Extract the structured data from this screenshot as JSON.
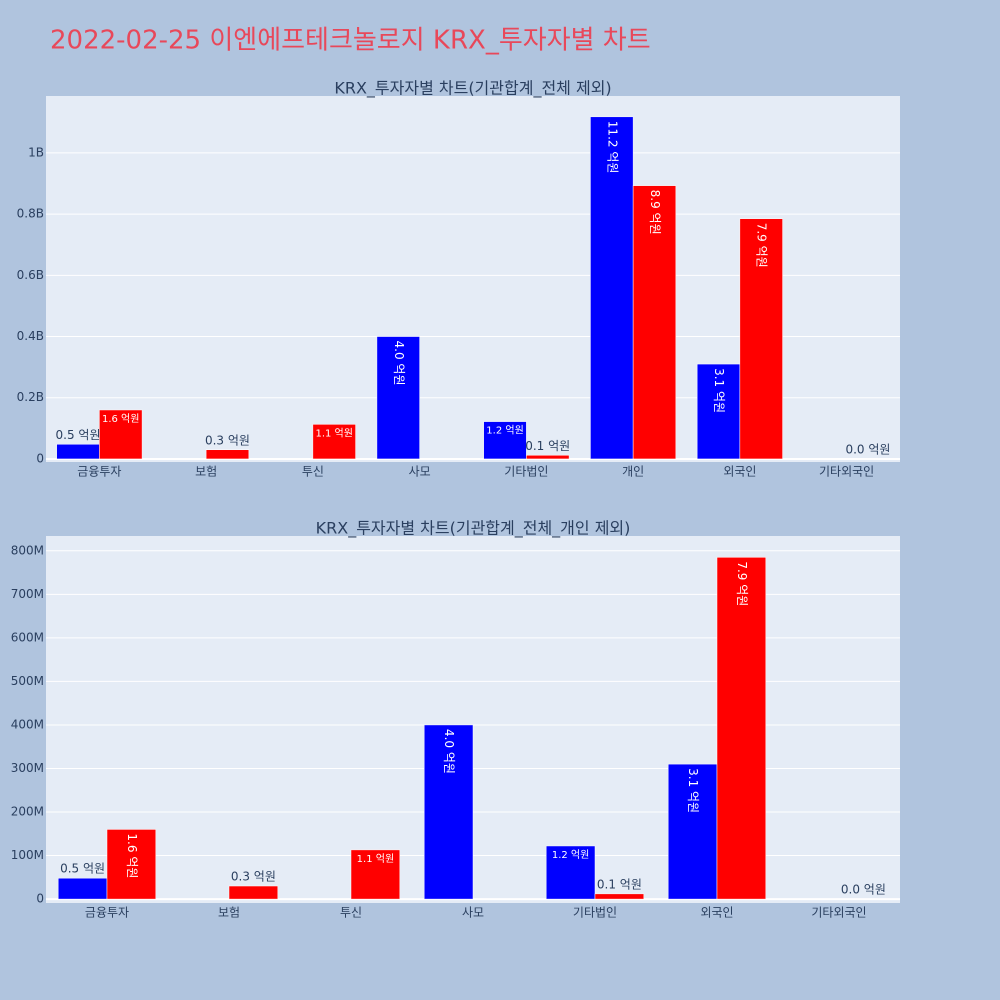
{
  "title": "2022-02-25 이엔에프테크놀로지 KRX_투자자별 차트",
  "chart_data": [
    {
      "type": "bar",
      "title": "KRX_투자자별 차트(기관합계_전체 제외)",
      "categories": [
        "금융투자",
        "보험",
        "투신",
        "사모",
        "기타법인",
        "개인",
        "외국인",
        "기타외국인"
      ],
      "series": [
        {
          "color": "#0000ff",
          "values": [
            48000000,
            null,
            null,
            400000000,
            122000000,
            1118000000,
            310000000,
            null
          ],
          "value_labels": [
            "0.5 억원",
            null,
            null,
            "4.0 억원",
            "1.2 억원",
            "11.2 억원",
            "3.1 억원",
            null
          ]
        },
        {
          "color": "#ff0000",
          "values": [
            160000000,
            30000000,
            113000000,
            null,
            12000000,
            893000000,
            785000000,
            0
          ],
          "value_labels": [
            "1.6 억원",
            "0.3 억원",
            "1.1 억원",
            null,
            "0.1 억원",
            "8.9 억원",
            "7.9 억원",
            "0.0 억원"
          ]
        }
      ],
      "ylim": [
        -10000000,
        1186000000
      ],
      "yticks": [
        0,
        {
          "value": 200000000,
          "label": "0.2B"
        },
        {
          "value": 400000000,
          "label": "0.4B"
        },
        {
          "value": 600000000,
          "label": "0.6B"
        },
        {
          "value": 800000000,
          "label": "0.8B"
        },
        {
          "value": 1000000000,
          "label": "1B"
        }
      ],
      "grid": true
    },
    {
      "type": "bar",
      "title": "KRX_투자자별 차트(기관합계_전체_개인 제외)",
      "categories": [
        "금융투자",
        "보험",
        "투신",
        "사모",
        "기타법인",
        "외국인",
        "기타외국인"
      ],
      "series": [
        {
          "color": "#0000ff",
          "values": [
            48000000,
            null,
            null,
            400000000,
            122000000,
            310000000,
            null
          ],
          "value_labels": [
            "0.5 억원",
            null,
            null,
            "4.0 억원",
            "1.2 억원",
            "3.1 억원",
            null
          ]
        },
        {
          "color": "#ff0000",
          "values": [
            160000000,
            30000000,
            113000000,
            null,
            12000000,
            785000000,
            0
          ],
          "value_labels": [
            "1.6 억원",
            "0.3 억원",
            "1.1 억원",
            null,
            "0.1 억원",
            "7.9 억원",
            "0.0 억원"
          ]
        }
      ],
      "ylim": [
        -9000000,
        834000000
      ],
      "yticks": [
        0,
        {
          "value": 100000000,
          "label": "100M"
        },
        {
          "value": 200000000,
          "label": "200M"
        },
        {
          "value": 300000000,
          "label": "300M"
        },
        {
          "value": 400000000,
          "label": "400M"
        },
        {
          "value": 500000000,
          "label": "500M"
        },
        {
          "value": 600000000,
          "label": "600M"
        },
        {
          "value": 700000000,
          "label": "700M"
        },
        {
          "value": 800000000,
          "label": "800M"
        }
      ],
      "grid": true
    }
  ]
}
